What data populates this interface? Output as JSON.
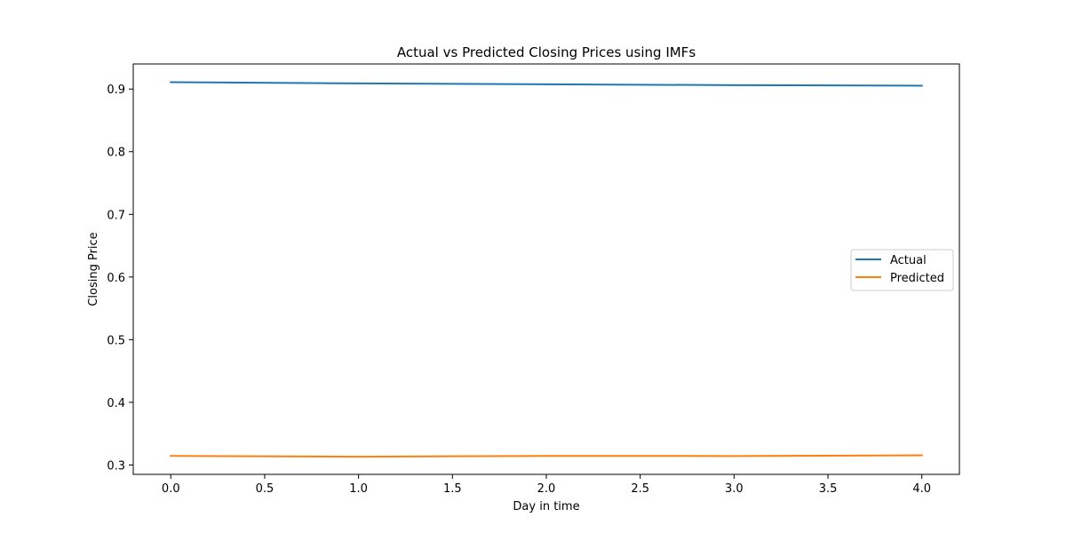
{
  "chart_data": {
    "type": "line",
    "title": "Actual vs Predicted Closing Prices using IMFs",
    "xlabel": "Day in time",
    "ylabel": "Closing Price",
    "x": [
      0,
      1,
      2,
      3,
      4
    ],
    "series": [
      {
        "name": "Actual",
        "color": "#1f77b4",
        "values": [
          0.911,
          0.909,
          0.9075,
          0.9062,
          0.9053
        ]
      },
      {
        "name": "Predicted",
        "color": "#ff7f0e",
        "values": [
          0.3145,
          0.3132,
          0.3145,
          0.3143,
          0.3155
        ]
      }
    ],
    "xlim": [
      -0.2,
      4.2
    ],
    "ylim": [
      0.285,
      0.94
    ],
    "xticks": [
      "0.0",
      "0.5",
      "1.0",
      "1.5",
      "2.0",
      "2.5",
      "3.0",
      "3.5",
      "4.0"
    ],
    "yticks": [
      "0.3",
      "0.4",
      "0.5",
      "0.6",
      "0.7",
      "0.8",
      "0.9"
    ],
    "grid": false,
    "legend_position": "center-right"
  }
}
